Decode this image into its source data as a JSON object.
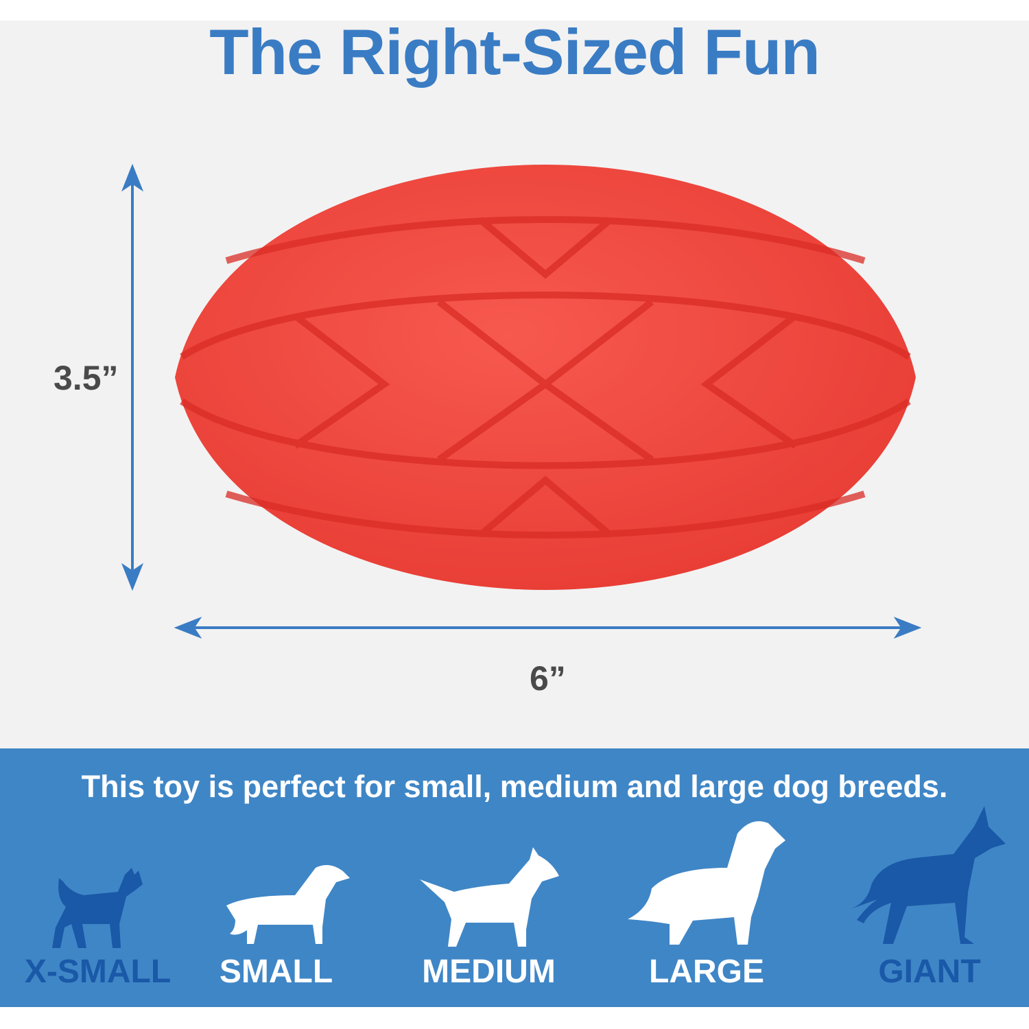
{
  "title": "The Right-Sized Fun",
  "dimensions": {
    "height": "3.5”",
    "width": "6”"
  },
  "colors": {
    "title": "#3a7cc4",
    "band": "#3f86c6",
    "inactive_dog": "#1a58a8",
    "active_dog": "#ffffff",
    "ball": "#f0453c",
    "arrow": "#3a7cc4"
  },
  "band": {
    "tagline": "This toy is perfect for small, medium and large dog breeds.",
    "sizes": [
      {
        "label": "X-SMALL",
        "icon": "chihuahua-icon",
        "suitable": false
      },
      {
        "label": "SMALL",
        "icon": "dachshund-icon",
        "suitable": true
      },
      {
        "label": "MEDIUM",
        "icon": "bull-terrier-icon",
        "suitable": true
      },
      {
        "label": "LARGE",
        "icon": "golden-retriever-icon",
        "suitable": true
      },
      {
        "label": "GIANT",
        "icon": "great-dane-icon",
        "suitable": false
      }
    ]
  }
}
